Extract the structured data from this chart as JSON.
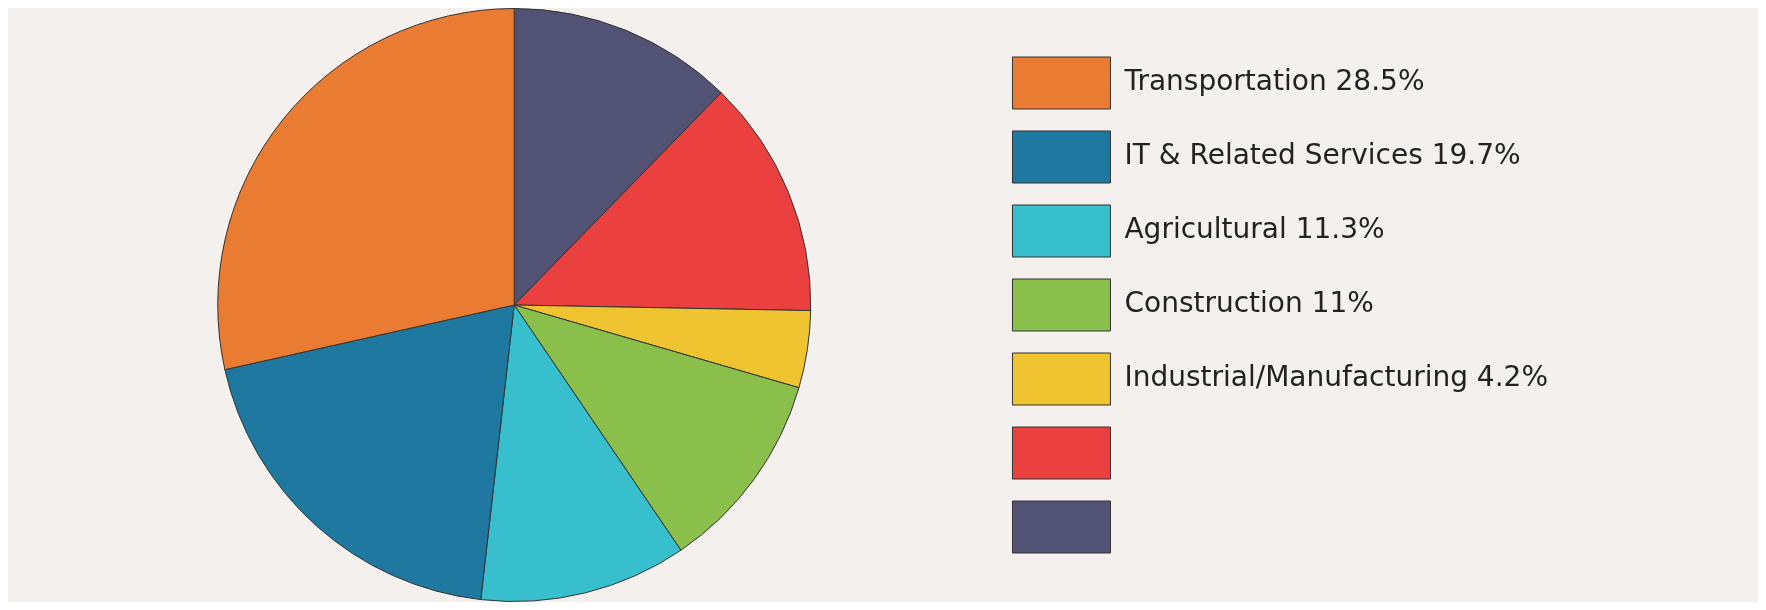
{
  "chart_data": {
    "type": "pie",
    "categories": [
      "Transportation 28.5%",
      "IT & Related Services 19.7%",
      "Agricultural 11.3%",
      "Construction 11%",
      "Industrial/Manufacturing 4.2%",
      null,
      null
    ],
    "values": [
      28.5,
      19.7,
      11.3,
      11,
      4.2,
      13,
      12.3
    ],
    "colors": [
      "#e97b32",
      "#1f78a0",
      "#37bfcd",
      "#8bbf4c",
      "#f0c431",
      "#ea4140",
      "#525275"
    ],
    "legend": "right"
  }
}
